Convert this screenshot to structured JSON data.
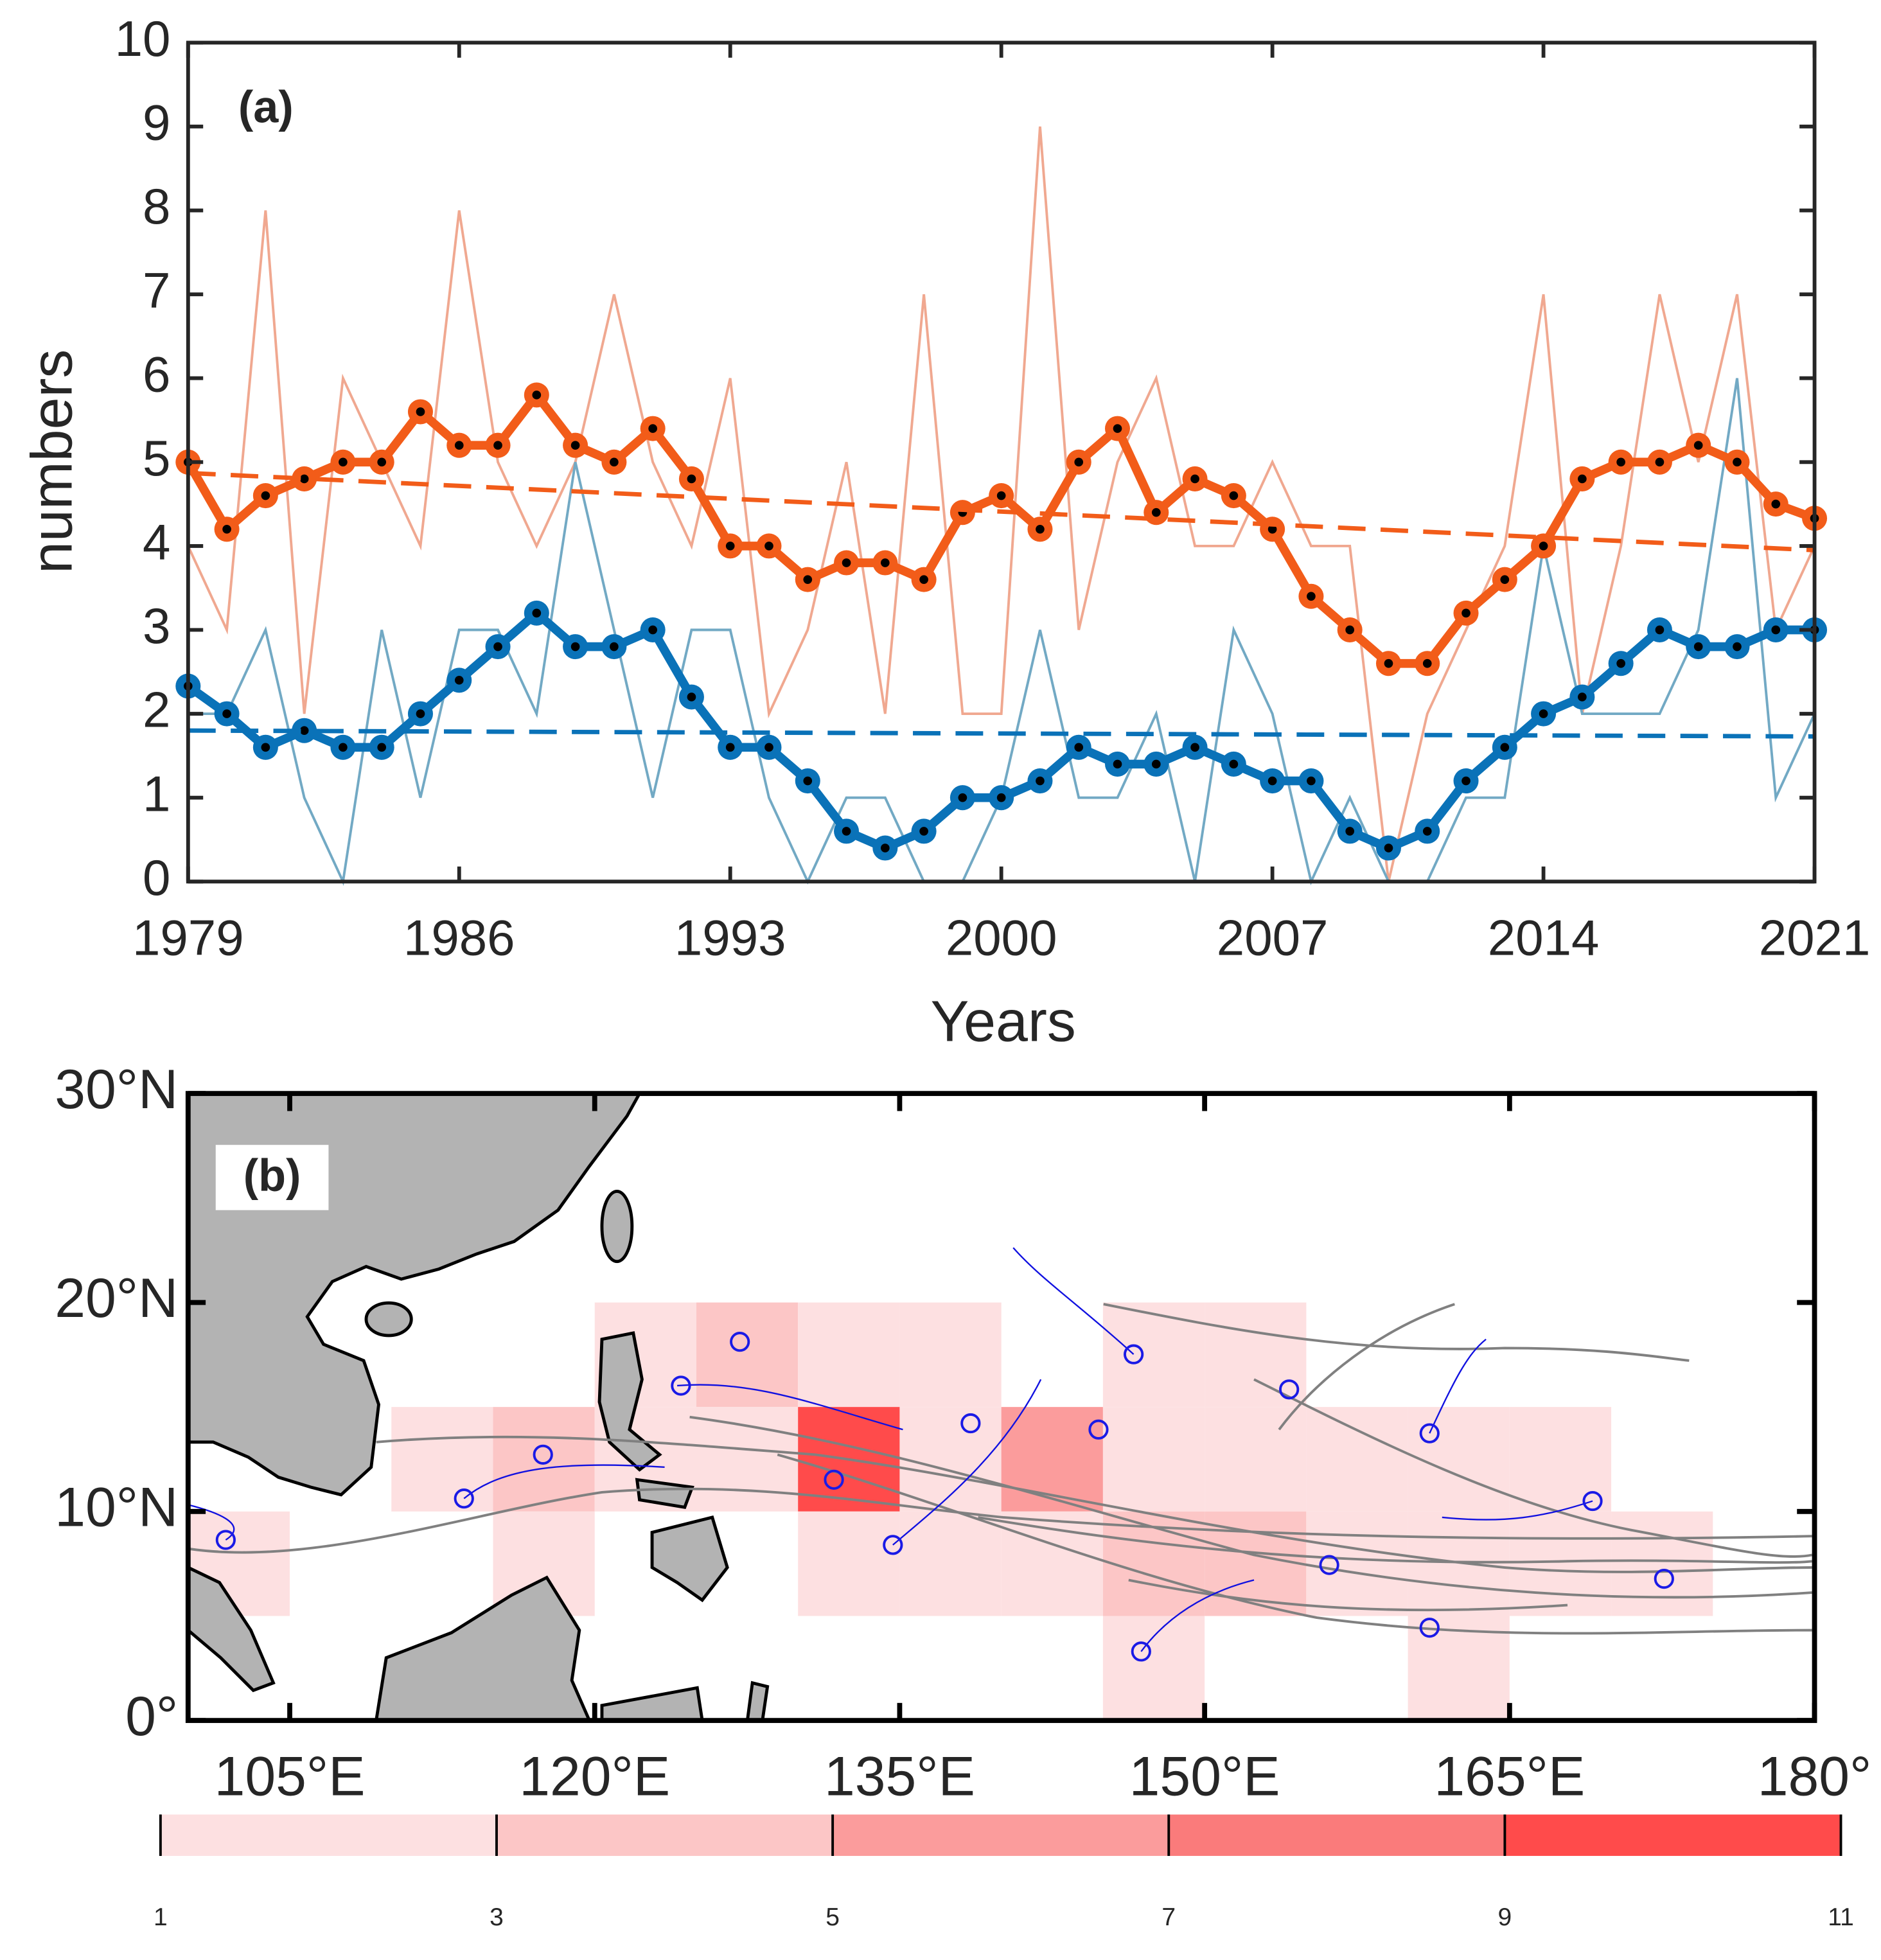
{
  "chart_data": [
    {
      "type": "line",
      "annotation": "(a)",
      "xlabel": "Years",
      "ylabel": "numbers",
      "x": [
        1979,
        1980,
        1981,
        1982,
        1983,
        1984,
        1985,
        1986,
        1987,
        1988,
        1989,
        1990,
        1991,
        1992,
        1993,
        1994,
        1995,
        1996,
        1997,
        1998,
        1999,
        2000,
        2001,
        2002,
        2003,
        2004,
        2005,
        2006,
        2007,
        2008,
        2009,
        2010,
        2011,
        2012,
        2013,
        2014,
        2015,
        2016,
        2017,
        2018,
        2019,
        2020,
        2021
      ],
      "xlim": [
        1979,
        2021
      ],
      "xticks": [
        1979,
        1986,
        1993,
        2000,
        2007,
        2014,
        2021
      ],
      "ylim": [
        0,
        10
      ],
      "yticks": [
        0,
        1,
        2,
        3,
        4,
        5,
        6,
        7,
        8,
        9,
        10
      ],
      "series": [
        {
          "style": "thin",
          "color": "#f0a890",
          "values": [
            4,
            3,
            8,
            2,
            6,
            5,
            4,
            8,
            5,
            4,
            5,
            7,
            5,
            4,
            6,
            2,
            3,
            5,
            2,
            7,
            2,
            2,
            9,
            3,
            5,
            6,
            4,
            4,
            5,
            4,
            4,
            0,
            2,
            3,
            4,
            7,
            2,
            4,
            7,
            5,
            7,
            3,
            4
          ]
        },
        {
          "style": "thin",
          "color": "#72a9c4",
          "values": [
            2,
            2,
            3,
            1,
            0,
            3,
            1,
            3,
            3,
            2,
            5,
            3,
            1,
            3,
            3,
            1,
            0,
            1,
            1,
            0,
            0,
            1,
            3,
            1,
            1,
            2,
            0,
            3,
            2,
            0,
            1,
            0,
            0,
            1,
            1,
            4,
            2,
            2,
            2,
            3,
            6,
            1,
            2
          ]
        },
        {
          "style": "smoothed",
          "color": "#f25c19",
          "values": [
            5.0,
            4.2,
            4.6,
            4.8,
            5.0,
            5.0,
            5.6,
            5.2,
            5.2,
            5.8,
            5.2,
            5.0,
            5.4,
            4.8,
            4.0,
            4.0,
            3.6,
            3.8,
            3.8,
            3.6,
            4.4,
            4.6,
            4.2,
            5.0,
            5.4,
            4.4,
            4.8,
            4.6,
            4.2,
            3.4,
            3.0,
            2.6,
            2.6,
            3.2,
            3.6,
            4.0,
            4.8,
            5.0,
            5.0,
            5.2,
            5.0,
            4.5,
            4.33
          ]
        },
        {
          "style": "smoothed",
          "color": "#0a72b8",
          "values": [
            2.33,
            2.0,
            1.6,
            1.8,
            1.6,
            1.6,
            2.0,
            2.4,
            2.8,
            3.2,
            2.8,
            2.8,
            3.0,
            2.2,
            1.6,
            1.6,
            1.2,
            0.6,
            0.4,
            0.6,
            1.0,
            1.0,
            1.2,
            1.6,
            1.4,
            1.4,
            1.6,
            1.4,
            1.2,
            1.2,
            0.6,
            0.4,
            0.6,
            1.2,
            1.6,
            2.0,
            2.2,
            2.6,
            3.0,
            2.8,
            2.8,
            3.0,
            3.0
          ]
        },
        {
          "style": "trend",
          "color": "#f25c19",
          "x": [
            1979,
            2021
          ],
          "values": [
            4.87,
            3.95
          ]
        },
        {
          "style": "trend",
          "color": "#0a72b8",
          "x": [
            1979,
            2021
          ],
          "values": [
            1.8,
            1.73
          ]
        }
      ]
    },
    {
      "type": "heatmap",
      "annotation": "(b)",
      "xlim": [
        100,
        180
      ],
      "ylim": [
        0,
        30
      ],
      "cell_size": 5,
      "xticks": [
        {
          "value": 105,
          "label": "105°E"
        },
        {
          "value": 120,
          "label": "120°E"
        },
        {
          "value": 135,
          "label": "135°E"
        },
        {
          "value": 150,
          "label": "150°E"
        },
        {
          "value": 165,
          "label": "165°E"
        },
        {
          "value": 180,
          "label": "180°"
        }
      ],
      "yticks": [
        {
          "value": 0,
          "label": "0°"
        },
        {
          "value": 10,
          "label": "10°N"
        },
        {
          "value": 20,
          "label": "20°N"
        },
        {
          "value": 30,
          "label": "30°N"
        }
      ],
      "cells": {
        "lon": [
          120,
          125,
          130,
          135,
          145,
          150,
          110,
          115,
          120,
          125,
          130,
          135,
          140,
          145,
          150,
          155,
          160,
          165,
          100,
          115,
          130,
          135,
          140,
          145,
          150,
          155,
          160,
          165,
          170,
          145,
          160
        ],
        "lat": [
          15,
          15,
          15,
          15,
          15,
          15,
          10,
          10,
          10,
          10,
          10,
          10,
          10,
          10,
          10,
          10,
          10,
          10,
          5,
          5,
          5,
          5,
          5,
          5,
          5,
          5,
          5,
          5,
          5,
          0,
          0
        ],
        "values": [
          2,
          4,
          2,
          2,
          2,
          2,
          2,
          4,
          2,
          2,
          10,
          2,
          6,
          2,
          2,
          2,
          2,
          2,
          2,
          2,
          2,
          2,
          2,
          4,
          4,
          2,
          2,
          2,
          2,
          2,
          2
        ]
      },
      "colorbar": {
        "ticks": [
          1,
          3,
          5,
          7,
          9,
          11
        ],
        "colors": [
          "#fde0e1",
          "#fcc6c6",
          "#fb9c9c",
          "#fa7b7b",
          "#ff4b4b"
        ]
      }
    }
  ]
}
